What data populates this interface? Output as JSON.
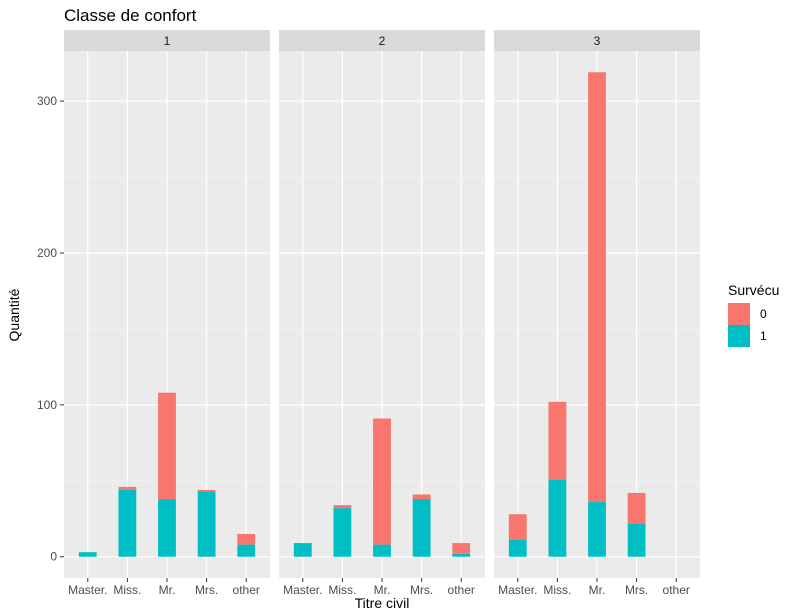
{
  "chart_data": {
    "type": "bar",
    "stacked": true,
    "title": "Classe de confort",
    "xlabel": "Titre civil",
    "ylabel": "Quantité",
    "ylim": [
      -14,
      333
    ],
    "yticks": [
      0,
      100,
      200,
      300
    ],
    "categories": [
      "Master.",
      "Miss.",
      "Mr.",
      "Mrs.",
      "other"
    ],
    "facets": [
      {
        "label": "1",
        "series": [
          {
            "name": "1",
            "values": [
              3,
              44,
              38,
              43,
              8
            ]
          },
          {
            "name": "0",
            "values": [
              0,
              2,
              70,
              1,
              7
            ]
          }
        ]
      },
      {
        "label": "2",
        "series": [
          {
            "name": "1",
            "values": [
              9,
              32,
              8,
              38,
              2
            ]
          },
          {
            "name": "0",
            "values": [
              0,
              2,
              83,
              3,
              7
            ]
          }
        ]
      },
      {
        "label": "3",
        "series": [
          {
            "name": "1",
            "values": [
              11,
              51,
              36,
              22,
              0
            ]
          },
          {
            "name": "0",
            "values": [
              17,
              51,
              283,
              20,
              0
            ]
          }
        ]
      }
    ],
    "legend": {
      "title": "Survécu",
      "position": "right",
      "items": [
        {
          "label": "0",
          "color": "#F8766D"
        },
        {
          "label": "1",
          "color": "#00BFC4"
        }
      ]
    },
    "colors": {
      "0": "#F8766D",
      "1": "#00BFC4"
    },
    "grid": true
  }
}
